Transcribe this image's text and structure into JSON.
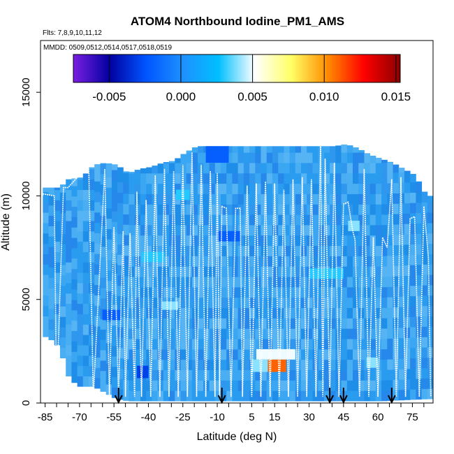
{
  "chart_data": {
    "type": "heatmap",
    "title": "ATOM4 Northbound Iodine_PM1_AMS",
    "subtitle_flights": "Flts: 7,8,9,10,11,12",
    "subtitle_dates": "MMDD: 0509,0512,0514,0517,0518,0519",
    "xlabel": "Latitude (deg N)",
    "ylabel": "Altitude (m)",
    "xlim": [
      -87,
      84
    ],
    "ylim": [
      0,
      17500
    ],
    "x_ticks": [
      -85,
      -70,
      -55,
      -40,
      -25,
      -10,
      5,
      15,
      30,
      45,
      60,
      75
    ],
    "x_tick_labels": [
      "-85",
      "-70",
      "-55",
      "-40",
      "-25",
      "-10",
      "5",
      "15",
      "30",
      "45",
      "60",
      "75"
    ],
    "y_ticks": [
      0,
      5000,
      10000,
      15000
    ],
    "y_tick_labels": [
      "0",
      "5000",
      "10000",
      "15000"
    ],
    "colorbar": {
      "range": [
        -0.0075,
        0.0153
      ],
      "ticks": [
        -0.005,
        0.0,
        0.005,
        0.01,
        0.015
      ],
      "tick_labels": [
        "-0.005",
        "0.000",
        "0.005",
        "0.010",
        "0.015"
      ],
      "colors": [
        "#7a1fe0",
        "#0000a0",
        "#0055ff",
        "#1e90ff",
        "#00bfff",
        "#ffffff",
        "#ffff66",
        "#ff8c00",
        "#ff0000",
        "#8b0000"
      ]
    },
    "base_color": "#2b9df0",
    "data_top_profile": {
      "lat": [
        -85,
        -80,
        -76,
        -70,
        -65,
        -60,
        -55,
        -50,
        -45,
        -40,
        -35,
        -30,
        -25,
        -20,
        -15,
        -10,
        -5,
        0,
        5,
        10,
        15,
        20,
        25,
        30,
        35,
        40,
        45,
        50,
        55,
        60,
        65,
        70,
        75,
        80
      ],
      "alt": [
        10400,
        10400,
        10800,
        10900,
        11500,
        11600,
        11500,
        11100,
        11300,
        11400,
        11600,
        11700,
        12100,
        12400,
        12400,
        12400,
        12400,
        12400,
        12400,
        12400,
        12400,
        12400,
        12400,
        12400,
        12400,
        12400,
        12500,
        12300,
        12000,
        11800,
        11600,
        11300,
        11000,
        10000
      ]
    },
    "data_bottom_profile": {
      "lat": [
        -85,
        -80,
        -76,
        -72,
        -65,
        -60,
        -55,
        -50,
        -45,
        -40,
        -30,
        -20,
        0,
        20,
        40,
        60,
        80
      ],
      "alt": [
        3200,
        2700,
        1300,
        800,
        800,
        500,
        200,
        100,
        100,
        100,
        100,
        100,
        100,
        100,
        100,
        100,
        200
      ]
    },
    "highlights": [
      {
        "lat": [
          12,
          20
        ],
        "alt": [
          1500,
          2100
        ],
        "value": 0.011
      },
      {
        "lat": [
          7,
          24
        ],
        "alt": [
          2100,
          2600
        ],
        "value": 0.005
      },
      {
        "lat": [
          5,
          12
        ],
        "alt": [
          1500,
          2100
        ],
        "value": 0.004
      },
      {
        "lat": [
          -34,
          -27
        ],
        "alt": [
          4500,
          4900
        ],
        "value": 0.004
      },
      {
        "lat": [
          -43,
          -33
        ],
        "alt": [
          6800,
          7300
        ],
        "value": 0.003
      },
      {
        "lat": [
          47,
          52
        ],
        "alt": [
          8300,
          8800
        ],
        "value": 0.004
      },
      {
        "lat": [
          -28,
          -22
        ],
        "alt": [
          9800,
          10300
        ],
        "value": 0.003
      },
      {
        "lat": [
          55,
          60
        ],
        "alt": [
          1700,
          2200
        ],
        "value": 0.004
      },
      {
        "lat": [
          30,
          45
        ],
        "alt": [
          6000,
          6500
        ],
        "value": 0.003
      },
      {
        "lat": [
          -60,
          -52
        ],
        "alt": [
          4000,
          4500
        ],
        "value": -0.002
      },
      {
        "lat": [
          -45,
          -40
        ],
        "alt": [
          1200,
          1800
        ],
        "value": -0.003
      },
      {
        "lat": [
          -10,
          0
        ],
        "alt": [
          7800,
          8300
        ],
        "value": -0.002
      },
      {
        "lat": [
          -15,
          -5
        ],
        "alt": [
          11600,
          12400
        ],
        "value": -0.002
      }
    ],
    "flight_track": {
      "lat": [
        -87,
        -86,
        -81,
        -80,
        -77,
        -75,
        -66,
        -64,
        -59,
        -57,
        -55,
        -53,
        -51,
        -50,
        -48,
        -46,
        -45,
        -43,
        -41,
        -39,
        -37,
        -35,
        -33,
        -31,
        -29,
        -27,
        -25,
        -23,
        -21,
        -19,
        -17,
        -15,
        -13,
        -11,
        -10,
        -9,
        -8,
        -6,
        -4,
        -2,
        0,
        1,
        3,
        5,
        7,
        9,
        11,
        13,
        15,
        17,
        19,
        21,
        23,
        25,
        27,
        29,
        31,
        33,
        35,
        36,
        37,
        39,
        41,
        43,
        45,
        47,
        49,
        50,
        52,
        54,
        56,
        58,
        60,
        62,
        64,
        66,
        68,
        70,
        72,
        74,
        76,
        78,
        80,
        82,
        83
      ],
      "alt": [
        9500,
        10100,
        10000,
        300,
        10400,
        10400,
        11500,
        300,
        11300,
        300,
        8500,
        300,
        8300,
        300,
        8200,
        300,
        10200,
        300,
        9800,
        300,
        11000,
        300,
        11300,
        300,
        11200,
        300,
        11500,
        300,
        12100,
        300,
        11500,
        300,
        11200,
        300,
        11100,
        300,
        9500,
        9400,
        300,
        9400,
        9400,
        300,
        10500,
        300,
        10600,
        300,
        10700,
        300,
        10600,
        300,
        10300,
        300,
        10800,
        300,
        10900,
        300,
        10800,
        300,
        12500,
        300,
        11800,
        300,
        11600,
        300,
        9600,
        9700,
        8300,
        7900,
        300,
        11300,
        300,
        8000,
        300,
        8000,
        7500,
        10800,
        300,
        10900,
        300,
        8900,
        9000,
        300,
        9500,
        7000,
        300
      ]
    },
    "markers_lat": [
      -53,
      -8,
      39,
      45,
      66
    ]
  }
}
